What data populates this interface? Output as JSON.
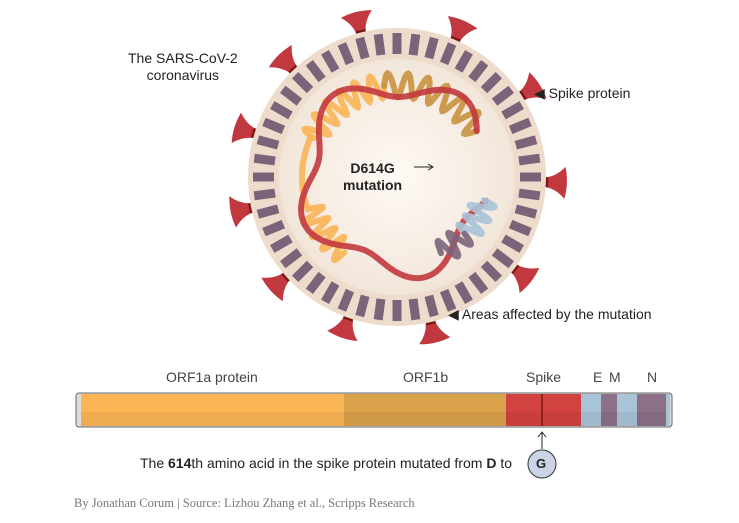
{
  "labels": {
    "virus_name": "The SARS-CoV-2",
    "virus_name_2": "coronavirus",
    "spike_protein": "◀ Spike protein",
    "areas_affected": "◀ Areas affected by the mutation",
    "mutation_1": "D614G",
    "mutation_2": "mutation"
  },
  "genome": {
    "segments": [
      {
        "label": "ORF1a protein",
        "color": "#fbb555"
      },
      {
        "label": "ORF1b",
        "color": "#dba24c"
      },
      {
        "label": "Spike",
        "color": "#d24240"
      },
      {
        "label": "E",
        "color": "#a9c3d8"
      },
      {
        "label": "M",
        "color": "#8c7088"
      },
      {
        "label": "N",
        "color": "#8c7088"
      }
    ]
  },
  "caption": {
    "pre": "The ",
    "num": "614",
    "mid": "th amino acid in the spike protein mutated from ",
    "from": "D",
    "to_word": " to",
    "to": "G"
  },
  "credit": "By Jonathan Corum | Source: Lizhou Zhang et al., Scripps Research",
  "colors": {
    "spike": "#c1393e",
    "envelope": "#eddccb",
    "membrane": "#7b6479",
    "spike_band": "#7d1414"
  }
}
